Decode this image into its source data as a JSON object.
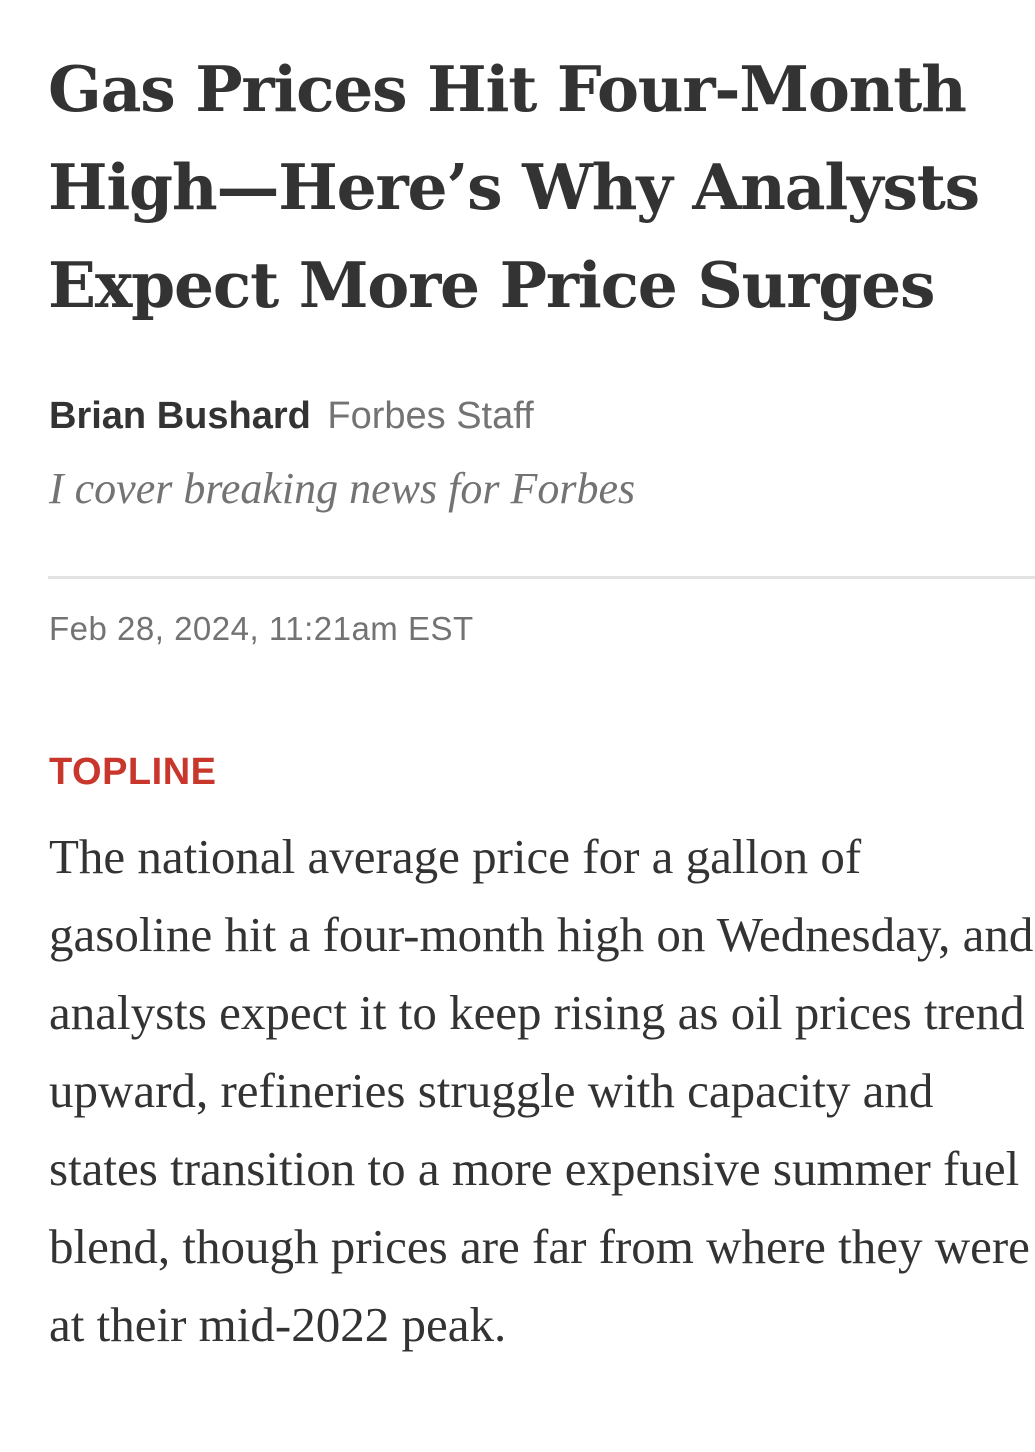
{
  "article": {
    "headline": "Gas Prices Hit Four-Month High—Here’s Why Analysts Expect More Price Surges",
    "author": {
      "name": "Brian Bushard",
      "role": "Forbes Staff",
      "bio": "I cover breaking news for Forbes"
    },
    "timestamp": "Feb 28, 2024, 11:21am EST",
    "section_label": "TOPLINE",
    "body": "The national average price for a gallon of gasoline hit a four-month high on Wednesday, and analysts expect it to keep rising as oil prices trend upward, refineries struggle with capacity and states transition to a more expensive summer fuel blend, though prices are far from where they were at their mid-2022 peak."
  },
  "colors": {
    "text": "#333333",
    "muted": "#737373",
    "accent": "#c9372c",
    "divider": "#e2e2e2",
    "background": "#ffffff"
  }
}
